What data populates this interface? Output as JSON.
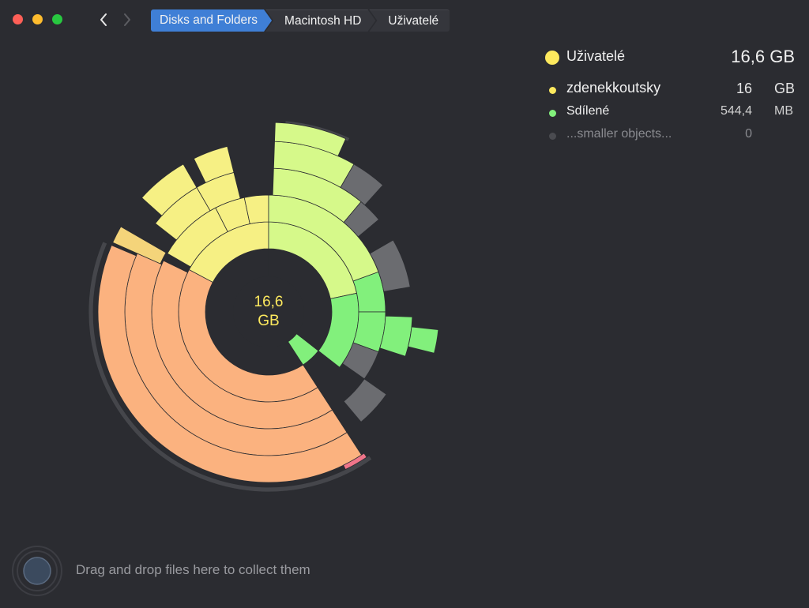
{
  "window": {
    "colors": {
      "close": "#fe5f57",
      "minimize": "#febc2e",
      "maximize": "#28c840"
    }
  },
  "toolbar": {
    "back_icon": "chevron-left-icon",
    "forward_icon": "chevron-right-icon",
    "breadcrumbs": [
      "Disks and Folders",
      "Macintosh HD",
      "Uživatelé"
    ]
  },
  "sunburst": {
    "center_value": "16,6",
    "center_unit": "GB",
    "colors": {
      "center_ring": "#fde95e",
      "main_folder": "#fbb27f",
      "yellow": "#f6f084",
      "light_green": "#d6f98a",
      "green": "#82f07c",
      "gray": "#6b6c70",
      "pink": "#f0758a",
      "background": "#2b2c31"
    }
  },
  "legend": {
    "title": {
      "name": "Uživatelé",
      "size": "16,6 GB",
      "color": "#fde95e"
    },
    "items": [
      {
        "name": "zdenekkoutsky",
        "value": "16",
        "unit": "GB",
        "color": "#fde95e"
      },
      {
        "name": "Sdílené",
        "value": "544,4",
        "unit": "MB",
        "color": "#82f07c"
      },
      {
        "name": "...smaller objects...",
        "value": "0",
        "unit": "",
        "color": "#4a4b50"
      }
    ]
  },
  "dropzone": {
    "icon": "collector-icon",
    "text": "Drag and drop files here to collect them"
  }
}
